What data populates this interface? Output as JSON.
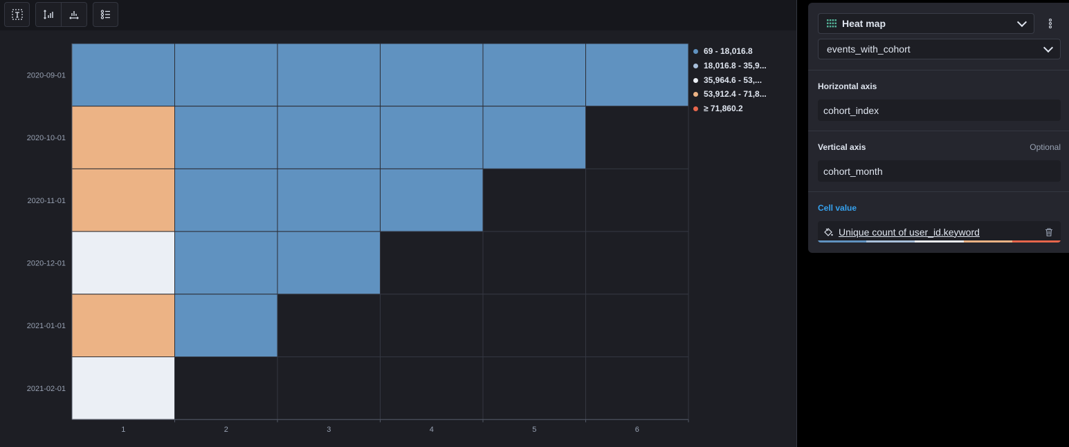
{
  "toolbar": {
    "buttons": [
      {
        "name": "text-icon"
      },
      {
        "name": "vertical-axis-icon"
      },
      {
        "name": "horizontal-axis-icon"
      },
      {
        "name": "legend-icon"
      }
    ]
  },
  "chart_data": {
    "type": "heatmap",
    "x_categories": [
      "1",
      "2",
      "3",
      "4",
      "5",
      "6"
    ],
    "y_categories": [
      "2020-09-01",
      "2020-10-01",
      "2020-11-01",
      "2020-12-01",
      "2021-01-01",
      "2021-02-01"
    ],
    "cell_bands": [
      [
        1,
        1,
        1,
        1,
        1,
        1
      ],
      [
        4,
        1,
        1,
        1,
        1,
        null
      ],
      [
        4,
        1,
        1,
        1,
        null,
        null
      ],
      [
        3,
        1,
        1,
        null,
        null,
        null
      ],
      [
        4,
        1,
        null,
        null,
        null,
        null
      ],
      [
        3,
        null,
        null,
        null,
        null,
        null
      ]
    ],
    "legend": [
      {
        "label": "69 - 18,016.8",
        "color": "#6092c0"
      },
      {
        "label": "18,016.8 - 35,9...",
        "color": "#a8bfda"
      },
      {
        "label": "35,964.6 - 53,...",
        "color": "#ebeff5"
      },
      {
        "label": "53,912.4 - 71,8...",
        "color": "#ecb385"
      },
      {
        "label": "≥ 71,860.2",
        "color": "#e7664c"
      }
    ],
    "grid": true,
    "legend_position": "right"
  },
  "config": {
    "chart_type": "Heat map",
    "index": "events_with_cohort",
    "horizontal_axis": {
      "label": "Horizontal axis",
      "value": "cohort_index"
    },
    "vertical_axis": {
      "label": "Vertical axis",
      "optional": "Optional",
      "value": "cohort_month"
    },
    "cell_value": {
      "label": "Cell value",
      "value": "Unique count of user_id.keyword"
    },
    "palette": [
      "#6092c0",
      "#a8bfda",
      "#ebeff5",
      "#ecb385",
      "#e7664c"
    ]
  },
  "colors": {
    "accent_link": "#36a2ef",
    "empty_cell": "#1d1e24",
    "grid_line": "#343741"
  }
}
